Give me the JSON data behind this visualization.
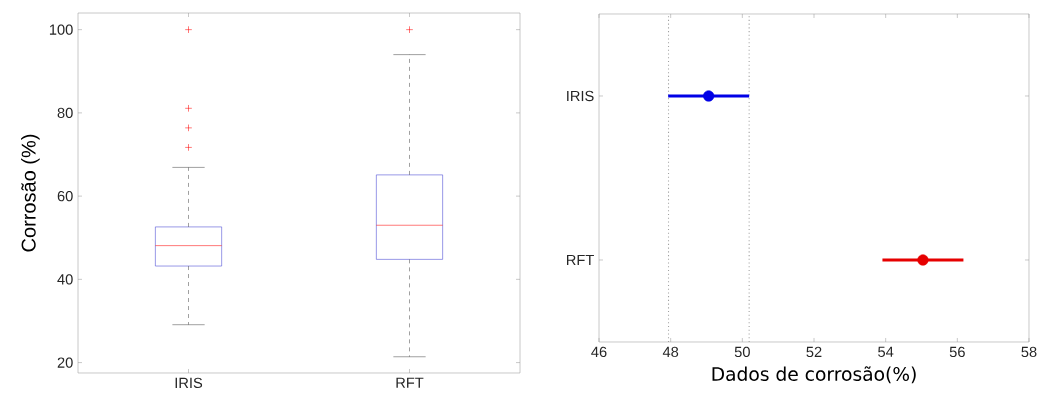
{
  "chart_data": [
    {
      "type": "box",
      "categories": [
        "IRIS",
        "RFT"
      ],
      "ylabel": "Corrosão (%)",
      "ylim": [
        17.5,
        104
      ],
      "yticks": [
        20,
        40,
        60,
        80,
        100
      ],
      "series": [
        {
          "color": "#3c3cd2",
          "boxes": [
            {
              "low": 29.1,
              "q1": 43.2,
              "median": 48.1,
              "q3": 52.6,
              "high": 66.9,
              "outliers": [
                71.7,
                76.4,
                81.1,
                100
              ]
            },
            {
              "low": 21.4,
              "q1": 44.8,
              "median": 53.0,
              "q3": 65.1,
              "high": 94.0,
              "outliers": [
                100
              ]
            }
          ]
        }
      ]
    },
    {
      "type": "scatter",
      "orientation": "horizontal",
      "categories": [
        "IRIS",
        "RFT"
      ],
      "values": [
        49.06,
        55.04
      ],
      "errors": [
        1.13,
        1.13
      ],
      "colors": [
        "#0000e6",
        "#e60000"
      ],
      "marker": "circle",
      "xlabel": "Dados de corrosão(%)",
      "xlim": [
        46,
        58
      ],
      "xticks": [
        46,
        48,
        50,
        52,
        54,
        56,
        58
      ],
      "ref_lines": [
        {
          "axis": "x",
          "value": 47.94,
          "color": "#a0a0a0",
          "line_style": "dotted"
        },
        {
          "axis": "x",
          "value": 50.19,
          "color": "#a0a0a0",
          "line_style": "dotted"
        }
      ]
    }
  ]
}
